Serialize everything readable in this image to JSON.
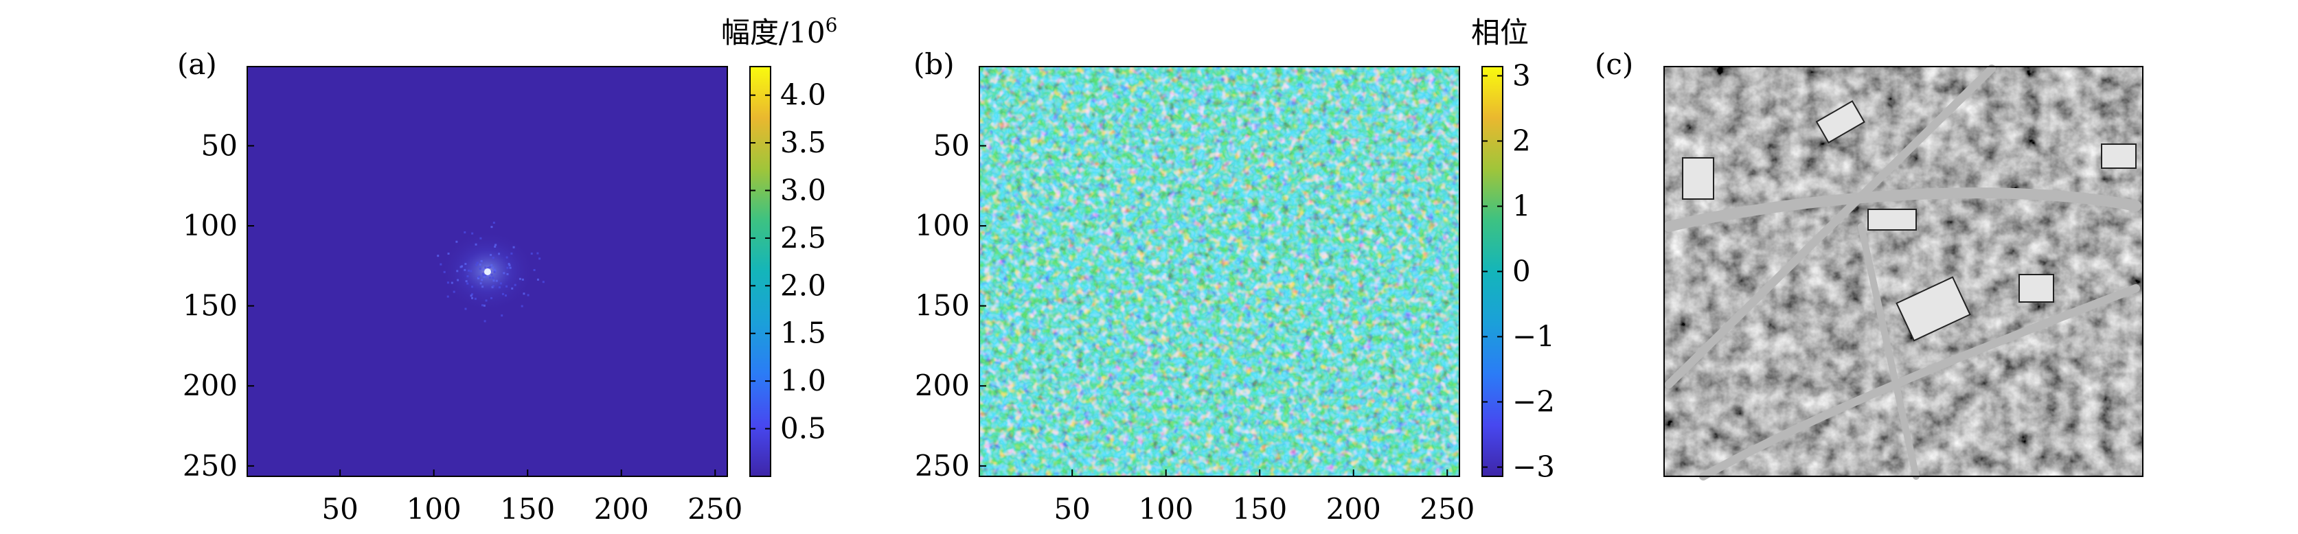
{
  "chart_data": [
    {
      "type": "heatmap",
      "panel_label": "(a)",
      "description_values": "2D Fourier magnitude spectrum, near-zero everywhere except a bright peak at the center",
      "x_ticks": [
        50,
        100,
        150,
        200,
        250
      ],
      "y_ticks": [
        50,
        100,
        150,
        200,
        250
      ],
      "xlim": [
        1,
        256
      ],
      "ylim": [
        256,
        1
      ],
      "peak_location": [
        129,
        129
      ],
      "colorbar": {
        "label": "幅度/10",
        "label_exponent": "6",
        "ticks": [
          "0.5",
          "1.0",
          "1.5",
          "2.0",
          "2.5",
          "3.0",
          "3.5",
          "4.0"
        ],
        "tick_values": [
          0.5,
          1.0,
          1.5,
          2.0,
          2.5,
          3.0,
          3.5,
          4.0
        ],
        "range": [
          0,
          4.3
        ],
        "colormap": "parula"
      }
    },
    {
      "type": "heatmap",
      "panel_label": "(b)",
      "x_ticks": [
        50,
        100,
        150,
        200,
        250
      ],
      "y_ticks": [
        50,
        100,
        150,
        200,
        250
      ],
      "xlim": [
        1,
        256
      ],
      "ylim": [
        256,
        1
      ],
      "colorbar": {
        "label": "相位",
        "ticks": [
          "3",
          "2",
          "1",
          "0",
          "−1",
          "−2",
          "−3"
        ],
        "tick_values": [
          3,
          2,
          1,
          0,
          -1,
          -2,
          -3
        ],
        "range": [
          -3.1416,
          3.1416
        ],
        "colormap": "parula"
      }
    },
    {
      "type": "image",
      "panel_label": "(c)"
    }
  ],
  "colors": {
    "parula_low": "#3d26a8",
    "parula_mid": "#13b8c3",
    "parula_high": "#f9fb0e"
  }
}
